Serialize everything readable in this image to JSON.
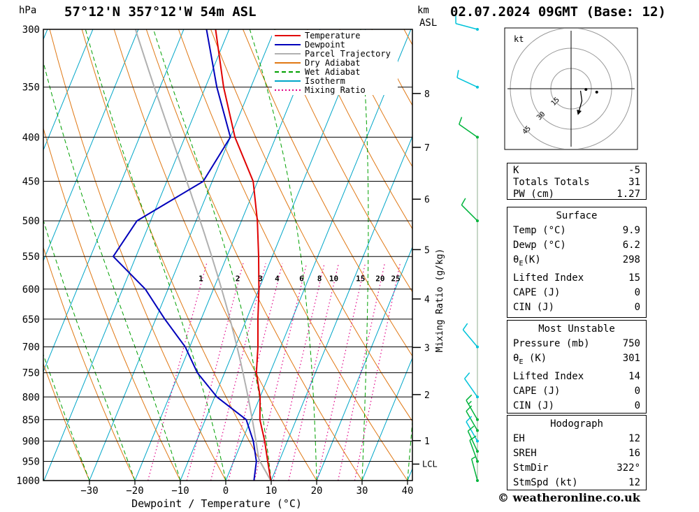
{
  "header": {
    "station": "57°12'N 357°12'W 54m ASL",
    "datetime": "02.07.2024 09GMT (Base: 12)"
  },
  "axes": {
    "pressure_label": "hPa",
    "pressure_ticks": [
      300,
      350,
      400,
      450,
      500,
      550,
      600,
      650,
      700,
      750,
      800,
      850,
      900,
      950,
      1000
    ],
    "temp_label": "Dewpoint / Temperature (°C)",
    "temp_ticks": [
      -30,
      -20,
      -10,
      0,
      10,
      20,
      30,
      40
    ],
    "km_label": "km",
    "asl_label": "ASL",
    "km_ticks": [
      8,
      7,
      6,
      5,
      4,
      3,
      2,
      1
    ],
    "lcl_label": "LCL",
    "mixing_label": "Mixing Ratio (g/kg)"
  },
  "legend": [
    {
      "label": "Temperature",
      "color": "#e00000",
      "style": "solid"
    },
    {
      "label": "Dewpoint",
      "color": "#0000bb",
      "style": "solid"
    },
    {
      "label": "Parcel Trajectory",
      "color": "#b0b0b0",
      "style": "solid"
    },
    {
      "label": "Dry Adiabat",
      "color": "#e07814",
      "style": "solid"
    },
    {
      "label": "Wet Adiabat",
      "color": "#00a000",
      "style": "dashed"
    },
    {
      "label": "Isotherm",
      "color": "#00a6c8",
      "style": "solid"
    },
    {
      "label": "Mixing Ratio",
      "color": "#e20087",
      "style": "dotted"
    }
  ],
  "chart_data": {
    "type": "line",
    "title": "Skew-T log-P sounding 57°12'N 357°12'W 54m ASL 02.07.2024 09GMT",
    "pressure_axis_hPa": [
      300,
      1000
    ],
    "temp_axis_c": [
      -40,
      40
    ],
    "mixing_ratio_lines_gkg": [
      1,
      2,
      3,
      4,
      6,
      8,
      10,
      15,
      20,
      25
    ],
    "lcl_pressure": 957,
    "surface_parcel": {
      "temp_c": 9.9,
      "dewpoint_c": 6.2,
      "pressure": 1000
    },
    "profiles": {
      "pressure": [
        300,
        350,
        400,
        450,
        500,
        550,
        600,
        650,
        700,
        750,
        800,
        850,
        900,
        950,
        1000
      ],
      "temperature_c": [
        -43,
        -36,
        -29,
        -21,
        -16.5,
        -13,
        -10,
        -7.5,
        -5,
        -3,
        0,
        2,
        5,
        7.5,
        9.9
      ],
      "dewpoint_c": [
        -45,
        -37.5,
        -30,
        -32,
        -43,
        -45,
        -35,
        -28,
        -21,
        -16,
        -9.5,
        -1,
        2.5,
        5,
        6.2
      ]
    },
    "winds": [
      {
        "p": 300,
        "spd": 10,
        "dir": 285,
        "c": "cyan"
      },
      {
        "p": 350,
        "spd": 10,
        "dir": 295,
        "c": "cyan"
      },
      {
        "p": 400,
        "spd": 10,
        "dir": 305,
        "c": "green"
      },
      {
        "p": 500,
        "spd": 10,
        "dir": 315,
        "c": "green"
      },
      {
        "p": 700,
        "spd": 10,
        "dir": 320,
        "c": "cyan"
      },
      {
        "p": 800,
        "spd": 10,
        "dir": 325,
        "c": "cyan"
      },
      {
        "p": 850,
        "spd": 15,
        "dir": 330,
        "c": "green"
      },
      {
        "p": 875,
        "spd": 10,
        "dir": 330,
        "c": "green"
      },
      {
        "p": 900,
        "spd": 10,
        "dir": 330,
        "c": "cyan"
      },
      {
        "p": 925,
        "spd": 10,
        "dir": 335,
        "c": "green"
      },
      {
        "p": 950,
        "spd": 10,
        "dir": 340,
        "c": "green"
      },
      {
        "p": 1000,
        "spd": 5,
        "dir": 345,
        "c": "green"
      }
    ],
    "wind_colors": {
      "cyan": "#00c3d9",
      "green": "#00b43c"
    }
  },
  "hodograph": {
    "unit_label": "kt",
    "rings": [
      15,
      30,
      45
    ],
    "trace_kt": [
      [
        7,
        -1.5
      ],
      [
        8,
        -9
      ],
      [
        6,
        -16
      ]
    ],
    "dots_kt": [
      [
        11,
        -0.5
      ],
      [
        19,
        -2.5
      ]
    ]
  },
  "tables": [
    {
      "title": null,
      "rows": [
        [
          "K",
          "-5"
        ],
        [
          "Totals Totals",
          "31"
        ],
        [
          "PW (cm)",
          "1.27"
        ]
      ]
    },
    {
      "title": "Surface",
      "rows": [
        [
          "Temp (°C)",
          "9.9"
        ],
        [
          "Dewp (°C)",
          "6.2"
        ],
        [
          "θE(K)",
          "298"
        ],
        [
          "Lifted Index",
          "15"
        ],
        [
          "CAPE (J)",
          "0"
        ],
        [
          "CIN (J)",
          "0"
        ]
      ]
    },
    {
      "title": "Most Unstable",
      "rows": [
        [
          "Pressure (mb)",
          "750"
        ],
        [
          "θE (K)",
          "301"
        ],
        [
          "Lifted Index",
          "14"
        ],
        [
          "CAPE (J)",
          "0"
        ],
        [
          "CIN (J)",
          "0"
        ]
      ]
    },
    {
      "title": "Hodograph",
      "rows": [
        [
          "EH",
          "12"
        ],
        [
          "SREH",
          "16"
        ],
        [
          "StmDir",
          "322°"
        ],
        [
          "StmSpd (kt)",
          "12"
        ]
      ]
    }
  ],
  "footer": {
    "copyright": "© weatheronline.co.uk"
  }
}
